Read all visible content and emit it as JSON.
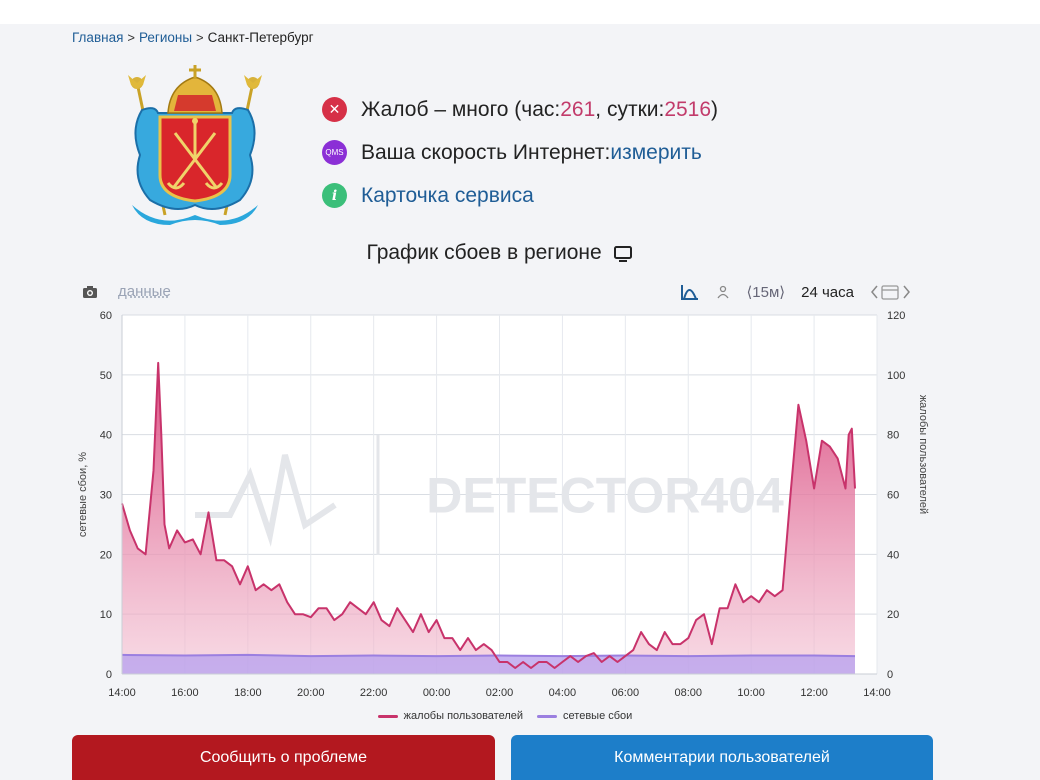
{
  "breadcrumb": {
    "home": "Главная",
    "regions": "Регионы",
    "current": "Санкт-Петербург"
  },
  "status": {
    "complaints_prefix": "Жалоб – много (час: ",
    "hour_count": "261",
    "day_sep": ", сутки: ",
    "day_count": "2516",
    "complaints_suffix": ")",
    "speed_label": "Ваша скорость Интернет: ",
    "speed_link": "измерить",
    "qms_badge": "QMS",
    "service_card": "Карточка сервиса"
  },
  "chart_section": {
    "title": "График сбоев в регионе",
    "data_link": "данные",
    "range_15m": "⟨15м⟩",
    "range_24h": "24 часа",
    "watermark": "DETECTOR404"
  },
  "chart_data": {
    "type": "area",
    "x_ticks": [
      "14:00",
      "16:00",
      "18:00",
      "20:00",
      "22:00",
      "00:00",
      "02:00",
      "04:00",
      "06:00",
      "08:00",
      "10:00",
      "12:00",
      "14:00"
    ],
    "y_left_label": "сетевые сбои, %",
    "y_left_ticks": [
      0,
      10,
      20,
      30,
      40,
      50,
      60
    ],
    "y_left_range": [
      0,
      60
    ],
    "y_right_label": "жалобы пользователей",
    "y_right_ticks": [
      0,
      20,
      40,
      60,
      80,
      100,
      120
    ],
    "y_right_range": [
      0,
      120
    ],
    "grid": true,
    "legend_position": "bottom",
    "series": [
      {
        "name": "жалобы пользователей",
        "axis": "right",
        "color": "#c8336b",
        "x_hours": [
          0,
          0.25,
          0.5,
          0.75,
          1.0,
          1.15,
          1.25,
          1.35,
          1.5,
          1.75,
          2.0,
          2.25,
          2.5,
          2.75,
          3.0,
          3.25,
          3.5,
          3.75,
          4.0,
          4.25,
          4.5,
          4.75,
          5.0,
          5.25,
          5.5,
          5.75,
          6.0,
          6.25,
          6.5,
          6.75,
          7.0,
          7.25,
          7.5,
          7.75,
          8.0,
          8.25,
          8.5,
          8.75,
          9.0,
          9.25,
          9.5,
          9.75,
          10.0,
          10.25,
          10.5,
          10.75,
          11.0,
          11.25,
          11.5,
          11.75,
          12.0,
          12.25,
          12.5,
          12.75,
          13.0,
          13.25,
          13.5,
          13.75,
          14.0,
          14.25,
          14.5,
          14.75,
          15.0,
          15.25,
          15.5,
          15.75,
          16.0,
          16.25,
          16.5,
          16.75,
          17.0,
          17.25,
          17.5,
          17.75,
          18.0,
          18.25,
          18.5,
          18.75,
          19.0,
          19.25,
          19.5,
          19.75,
          20.0,
          20.25,
          20.5,
          20.75,
          21.0,
          21.25,
          21.5,
          21.75,
          22.0,
          22.25,
          22.5,
          22.75,
          23.0,
          23.1,
          23.2,
          23.3
        ],
        "values": [
          57,
          48,
          42,
          40,
          68,
          104,
          80,
          50,
          42,
          48,
          44,
          45,
          40,
          54,
          38,
          38,
          36,
          30,
          36,
          28,
          30,
          28,
          30,
          24,
          20,
          20,
          19,
          22,
          22,
          18,
          20,
          24,
          22,
          20,
          24,
          18,
          16,
          22,
          18,
          14,
          20,
          14,
          18,
          12,
          12,
          8,
          12,
          8,
          10,
          8,
          4,
          4,
          2,
          4,
          2,
          4,
          4,
          2,
          4,
          6,
          4,
          6,
          7,
          4,
          6,
          4,
          6,
          8,
          14,
          10,
          8,
          14,
          10,
          10,
          12,
          18,
          20,
          10,
          22,
          22,
          30,
          24,
          26,
          24,
          28,
          26,
          28,
          60,
          90,
          78,
          62,
          78,
          76,
          72,
          62,
          80,
          82,
          62
        ],
        "note_values_in": "complaints (right axis units)"
      },
      {
        "name": "сетевые сбои",
        "axis": "left",
        "color": "#9b7fe0",
        "x_hours": [
          0,
          2,
          4,
          6,
          8,
          10,
          12,
          14,
          16,
          18,
          20,
          22,
          23.3
        ],
        "values": [
          3.2,
          3.1,
          3.2,
          3.0,
          3.1,
          3.0,
          3.1,
          3.0,
          3.1,
          3.0,
          3.1,
          3.1,
          3.0
        ]
      }
    ]
  },
  "legend": {
    "complaints": "жалобы пользователей",
    "network": "сетевые сбои"
  },
  "buttons": {
    "report": "Сообщить о проблеме",
    "comments": "Комментарии пользователей"
  },
  "colors": {
    "accent_link": "#1f5d96",
    "report_button": "#b3181f",
    "comments_button": "#1d7ec9",
    "complaints_line": "#c8336b",
    "network_line": "#9b7fe0"
  }
}
